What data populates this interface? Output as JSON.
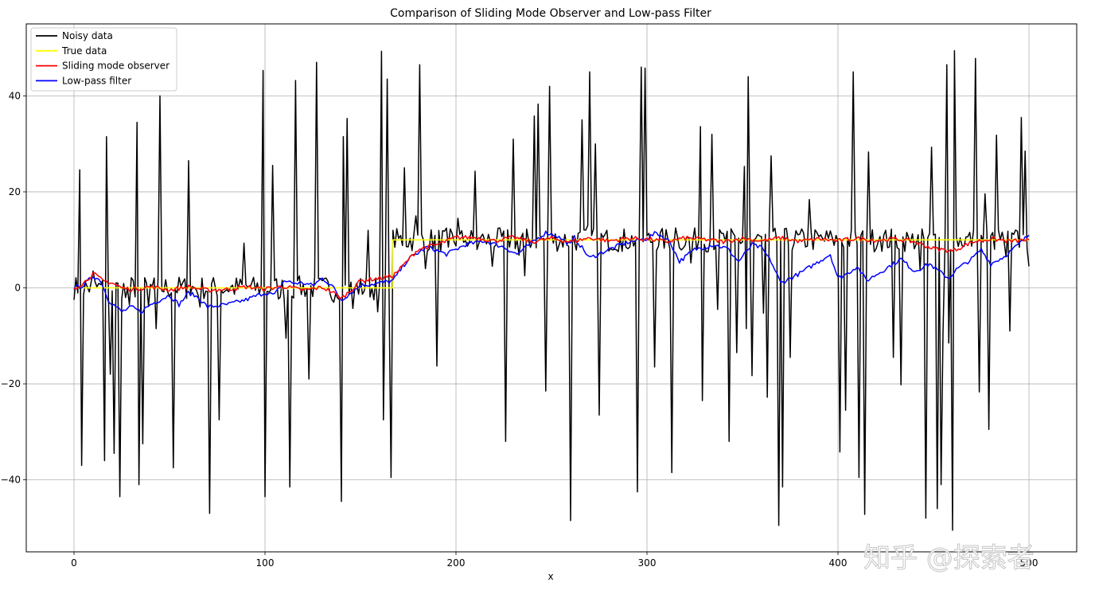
{
  "chart_data": {
    "type": "line",
    "title": "Comparison of Sliding Mode Observer and Low-pass Filter",
    "xlabel": "x",
    "ylabel": "",
    "xlim": [
      -25,
      525
    ],
    "ylim": [
      -55,
      55
    ],
    "xticks": [
      0,
      100,
      200,
      300,
      400,
      500
    ],
    "yticks": [
      -40,
      -20,
      0,
      20,
      40
    ],
    "grid": true,
    "legend_position": "top-left",
    "colors": {
      "noisy": "#000000",
      "true": "#ffff00",
      "smo": "#ff0000",
      "lpf": "#0000ff"
    },
    "series": [
      {
        "name": "Noisy data",
        "key": "noisy",
        "noise_level": 2.5,
        "spikes": [
          [
            3,
            24.6
          ],
          [
            4,
            -37
          ],
          [
            10,
            3.5
          ],
          [
            16,
            -36
          ],
          [
            17,
            31.5
          ],
          [
            19,
            -18
          ],
          [
            21,
            -34.5
          ],
          [
            24,
            -43.5
          ],
          [
            27,
            -2
          ],
          [
            29,
            -3.5
          ],
          [
            33,
            34.5
          ],
          [
            34,
            -41
          ],
          [
            36,
            -32.5
          ],
          [
            39,
            -3.8
          ],
          [
            43,
            -8.5
          ],
          [
            45,
            40
          ],
          [
            52,
            -37.5
          ],
          [
            60,
            26.5
          ],
          [
            66,
            -4
          ],
          [
            71,
            -47
          ],
          [
            76,
            -27.5
          ],
          [
            89,
            9.3
          ],
          [
            99,
            45.3
          ],
          [
            100,
            -43.5
          ],
          [
            104,
            25.5
          ],
          [
            107,
            -2.3
          ],
          [
            111,
            -10.5
          ],
          [
            113,
            -41.5
          ],
          [
            116,
            43.2
          ],
          [
            117,
            1.5
          ],
          [
            123,
            -19
          ],
          [
            127,
            47
          ],
          [
            130,
            1.5
          ],
          [
            136,
            -3
          ],
          [
            140,
            -44.5
          ],
          [
            141,
            31.5
          ],
          [
            143,
            35.3
          ],
          [
            146,
            -4.3
          ],
          [
            154,
            12
          ],
          [
            159,
            -5
          ],
          [
            161,
            49.3
          ],
          [
            162,
            -27.5
          ],
          [
            164,
            43.5
          ],
          [
            166,
            -39.5
          ],
          [
            173,
            25
          ],
          [
            179,
            15
          ],
          [
            181,
            46.5
          ],
          [
            184,
            4
          ],
          [
            190,
            -16.3
          ],
          [
            196,
            8.5
          ],
          [
            201,
            14.5
          ],
          [
            205,
            9.8
          ],
          [
            210,
            24.3
          ],
          [
            211,
            8
          ],
          [
            215,
            10
          ],
          [
            219,
            4.5
          ],
          [
            226,
            -32
          ],
          [
            230,
            31
          ],
          [
            233,
            6.8
          ],
          [
            236,
            2.5
          ],
          [
            241,
            35.8
          ],
          [
            243,
            38.3
          ],
          [
            247,
            -21.5
          ],
          [
            249,
            42
          ],
          [
            260,
            -48.5
          ],
          [
            266,
            35
          ],
          [
            269,
            13
          ],
          [
            270,
            45
          ],
          [
            273,
            30
          ],
          [
            275,
            -26.5
          ],
          [
            287,
            7.6
          ],
          [
            295,
            -42.5
          ],
          [
            297,
            46
          ],
          [
            299,
            45.8
          ],
          [
            304,
            -16.5
          ],
          [
            313,
            -38.5
          ],
          [
            315,
            12.5
          ],
          [
            319,
            8.3
          ],
          [
            323,
            5.2
          ],
          [
            328,
            33.6
          ],
          [
            329,
            -23.5
          ],
          [
            334,
            32
          ],
          [
            337,
            -4.5
          ],
          [
            343,
            -32
          ],
          [
            347,
            -13.5
          ],
          [
            351,
            25.3
          ],
          [
            352,
            -8.5
          ],
          [
            353,
            44
          ],
          [
            355,
            -18.3
          ],
          [
            361,
            -5.3
          ],
          [
            363,
            -22.8
          ],
          [
            365,
            27.5
          ],
          [
            369,
            -49.5
          ],
          [
            371,
            -41.5
          ],
          [
            375,
            -14.5
          ],
          [
            385,
            18.4
          ],
          [
            397,
            10.5
          ],
          [
            401,
            -34.2
          ],
          [
            404,
            -25.5
          ],
          [
            408,
            45
          ],
          [
            411,
            -39.5
          ],
          [
            414,
            -47.2
          ],
          [
            416,
            28.3
          ],
          [
            422,
            10.7
          ],
          [
            429,
            -14.5
          ],
          [
            433,
            -20.2
          ],
          [
            438,
            9.5
          ],
          [
            443,
            3.6
          ],
          [
            446,
            -48
          ],
          [
            449,
            29.3
          ],
          [
            452,
            -46
          ],
          [
            454,
            -41
          ],
          [
            455,
            -9.4
          ],
          [
            457,
            46.5
          ],
          [
            458,
            -11.5
          ],
          [
            460,
            -50.5
          ],
          [
            461,
            49.4
          ],
          [
            472,
            47.8
          ],
          [
            474,
            -21.7
          ],
          [
            477,
            19.6
          ],
          [
            479,
            -29.5
          ],
          [
            483,
            31.8
          ],
          [
            488,
            6.5
          ],
          [
            490,
            -9
          ],
          [
            496,
            35.5
          ],
          [
            498,
            28.5
          ],
          [
            500,
            4.5
          ]
        ]
      },
      {
        "name": "True data",
        "key": "true",
        "steps": [
          [
            0,
            0
          ],
          [
            167,
            10
          ],
          [
            500,
            10
          ]
        ]
      },
      {
        "name": "Sliding mode observer",
        "key": "smo",
        "points": [
          [
            0,
            0
          ],
          [
            5,
            1
          ],
          [
            10,
            3
          ],
          [
            15,
            1.5
          ],
          [
            20,
            1
          ],
          [
            25,
            0
          ],
          [
            30,
            -0.3
          ],
          [
            40,
            0.2
          ],
          [
            50,
            -0.4
          ],
          [
            60,
            0.2
          ],
          [
            70,
            -0.5
          ],
          [
            80,
            -0.3
          ],
          [
            90,
            0.2
          ],
          [
            100,
            -0.2
          ],
          [
            110,
            0.3
          ],
          [
            120,
            -0.5
          ],
          [
            130,
            0.1
          ],
          [
            135,
            -0.8
          ],
          [
            140,
            -2.2
          ],
          [
            145,
            -0.5
          ],
          [
            150,
            1.5
          ],
          [
            160,
            2
          ],
          [
            167,
            2.5
          ],
          [
            172,
            4.5
          ],
          [
            180,
            8
          ],
          [
            190,
            9
          ],
          [
            200,
            10.5
          ],
          [
            210,
            10.5
          ],
          [
            220,
            9.8
          ],
          [
            230,
            10.5
          ],
          [
            240,
            9.6
          ],
          [
            250,
            10.3
          ],
          [
            260,
            9.6
          ],
          [
            270,
            10.4
          ],
          [
            280,
            9.8
          ],
          [
            290,
            10.3
          ],
          [
            300,
            10.2
          ],
          [
            310,
            9.6
          ],
          [
            320,
            10.4
          ],
          [
            330,
            10.1
          ],
          [
            340,
            9.6
          ],
          [
            350,
            10.3
          ],
          [
            360,
            9.8
          ],
          [
            370,
            10.4
          ],
          [
            380,
            9.7
          ],
          [
            390,
            10.2
          ],
          [
            400,
            9.8
          ],
          [
            410,
            10.3
          ],
          [
            420,
            9.9
          ],
          [
            430,
            10.2
          ],
          [
            440,
            9.6
          ],
          [
            450,
            8.2
          ],
          [
            460,
            7.7
          ],
          [
            470,
            9.5
          ],
          [
            480,
            10.2
          ],
          [
            490,
            9.7
          ],
          [
            500,
            10
          ]
        ]
      },
      {
        "name": "Low-pass filter",
        "key": "lpf",
        "points": [
          [
            0,
            0
          ],
          [
            5,
            0.5
          ],
          [
            10,
            2.5
          ],
          [
            14,
            1.5
          ],
          [
            18,
            -2.5
          ],
          [
            25,
            -5
          ],
          [
            30,
            -4
          ],
          [
            35,
            -5
          ],
          [
            40,
            -3.5
          ],
          [
            45,
            -2.5
          ],
          [
            50,
            -1.5
          ],
          [
            55,
            -3.5
          ],
          [
            60,
            -1
          ],
          [
            65,
            -2
          ],
          [
            70,
            -4
          ],
          [
            80,
            -3.5
          ],
          [
            90,
            -2.5
          ],
          [
            100,
            -1
          ],
          [
            105,
            -1.5
          ],
          [
            110,
            1.5
          ],
          [
            115,
            1
          ],
          [
            120,
            1
          ],
          [
            125,
            0.5
          ],
          [
            130,
            2
          ],
          [
            135,
            0.5
          ],
          [
            140,
            -2.5
          ],
          [
            145,
            -1
          ],
          [
            150,
            0.5
          ],
          [
            160,
            1
          ],
          [
            167,
            1.5
          ],
          [
            175,
            6
          ],
          [
            185,
            8.5
          ],
          [
            195,
            7
          ],
          [
            205,
            9
          ],
          [
            215,
            9.8
          ],
          [
            225,
            8.5
          ],
          [
            232,
            7
          ],
          [
            240,
            9.5
          ],
          [
            247,
            11.5
          ],
          [
            252,
            11
          ],
          [
            260,
            9
          ],
          [
            262,
            10.5
          ],
          [
            270,
            6.2
          ],
          [
            280,
            8
          ],
          [
            290,
            9.5
          ],
          [
            300,
            10.3
          ],
          [
            305,
            11.5
          ],
          [
            312,
            9.6
          ],
          [
            317,
            5.5
          ],
          [
            325,
            8
          ],
          [
            335,
            9
          ],
          [
            342,
            8.2
          ],
          [
            348,
            5.5
          ],
          [
            355,
            9
          ],
          [
            360,
            8.3
          ],
          [
            365,
            5.5
          ],
          [
            370,
            1
          ],
          [
            380,
            3
          ],
          [
            390,
            5.5
          ],
          [
            396,
            7
          ],
          [
            400,
            2
          ],
          [
            405,
            3
          ],
          [
            410,
            4.5
          ],
          [
            415,
            1.5
          ],
          [
            425,
            4
          ],
          [
            433,
            6
          ],
          [
            440,
            3.5
          ],
          [
            448,
            5
          ],
          [
            452,
            3.7
          ],
          [
            458,
            2
          ],
          [
            462,
            3.8
          ],
          [
            470,
            6
          ],
          [
            475,
            8
          ],
          [
            480,
            5
          ],
          [
            487,
            6.5
          ],
          [
            493,
            8.5
          ],
          [
            500,
            11
          ]
        ]
      }
    ]
  },
  "watermark": "知乎 @探索者"
}
